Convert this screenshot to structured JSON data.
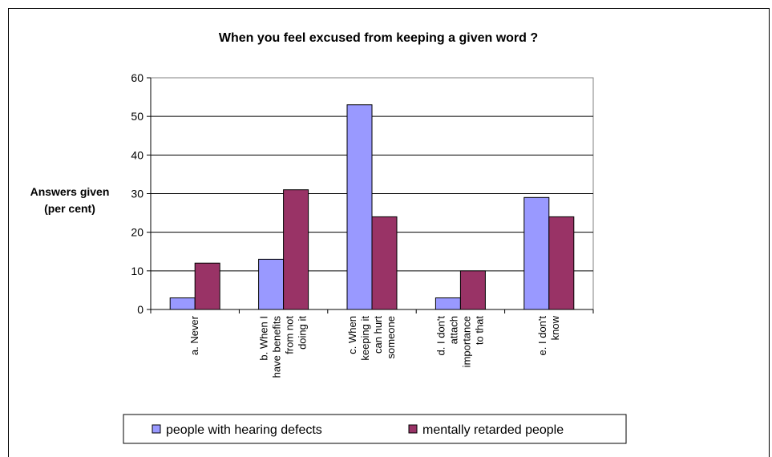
{
  "chart_data": {
    "type": "bar",
    "title": "When you feel excused from keeping a given word ?",
    "ylabel_lines": [
      "Answers given",
      "(per cent)"
    ],
    "xlabel": "",
    "ylim": [
      0,
      60
    ],
    "yticks": [
      0,
      10,
      20,
      30,
      40,
      50,
      60
    ],
    "grid": true,
    "legend_position": "bottom",
    "categories": [
      [
        "a. Never"
      ],
      [
        "b. When I",
        "have benefits",
        "from not",
        "doing it"
      ],
      [
        "c. When",
        "keeping it",
        "can hurt",
        "someone"
      ],
      [
        "d. I don't",
        "attach",
        "importance",
        "to that"
      ],
      [
        "e. I don't",
        "know"
      ]
    ],
    "series": [
      {
        "name": "people with hearing defects",
        "color": "#9999ff",
        "values": [
          3,
          13,
          53,
          3,
          29
        ]
      },
      {
        "name": "mentally retarded people",
        "color": "#993366",
        "values": [
          12,
          31,
          24,
          10,
          24
        ]
      }
    ]
  }
}
